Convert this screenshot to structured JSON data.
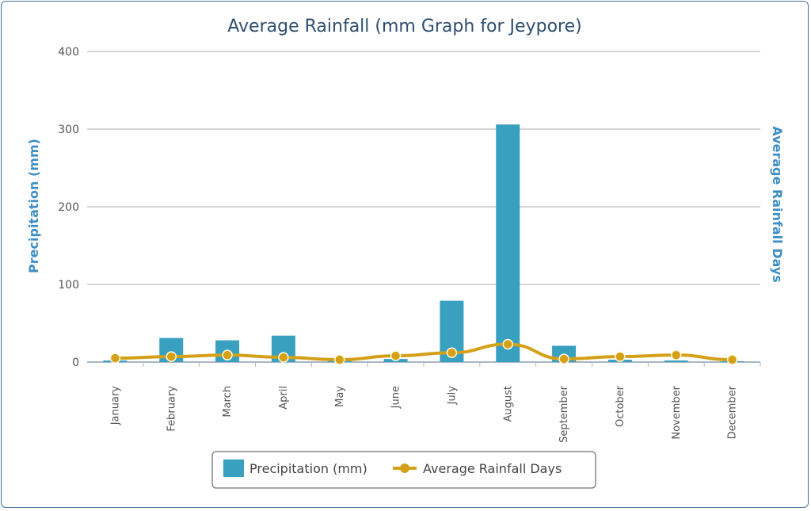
{
  "chart_data": {
    "type": "bar",
    "title": "Average Rainfall (mm Graph for Jeypore)",
    "xlabel": "",
    "ylabel": "Precipitation (mm)",
    "y2label": "Average Rainfall Days",
    "ylim": [
      0,
      400
    ],
    "yticks": [
      0,
      100,
      200,
      300,
      400
    ],
    "categories": [
      "January",
      "February",
      "March",
      "April",
      "May",
      "June",
      "July",
      "August",
      "September",
      "October",
      "November",
      "December"
    ],
    "series": [
      {
        "name": "Precipitation (mm)",
        "type": "bar",
        "color": "#3aa0c0",
        "values": [
          2,
          31,
          28,
          34,
          3,
          4,
          79,
          306,
          21,
          3,
          2,
          1
        ]
      },
      {
        "name": "Average Rainfall Days",
        "type": "line",
        "color": "#d4a017",
        "values": [
          5,
          7,
          9,
          6,
          3,
          8,
          12,
          23,
          4,
          7,
          9,
          3
        ]
      }
    ],
    "grid": true,
    "legend": "bottom-center"
  }
}
